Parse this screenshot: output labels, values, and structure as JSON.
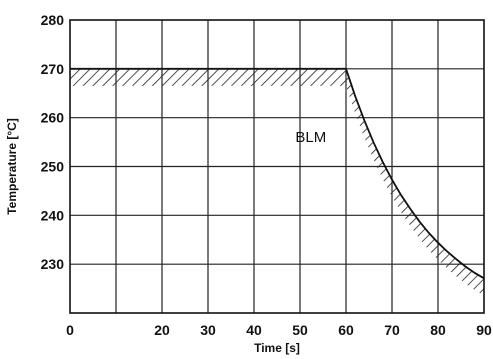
{
  "chart_data": {
    "type": "line",
    "title": "",
    "xlabel": "Time [s]",
    "ylabel": "Temperature [°C]",
    "xlim": [
      0,
      90
    ],
    "ylim": [
      220,
      280
    ],
    "x_ticks": [
      0,
      20,
      30,
      40,
      50,
      60,
      70,
      80,
      90
    ],
    "x_tick_labels": [
      "0",
      "20",
      "30",
      "40",
      "50",
      "60",
      "70",
      "80",
      "90"
    ],
    "y_ticks": [
      230,
      240,
      250,
      260,
      270,
      280
    ],
    "y_tick_labels": [
      "230",
      "240",
      "250",
      "260",
      "270",
      "280"
    ],
    "grid": true,
    "legend": "none",
    "series": [
      {
        "x": [
          0,
          60,
          62,
          64,
          66,
          68,
          70,
          72,
          74,
          76,
          78,
          80,
          82,
          84,
          86,
          88,
          90
        ],
        "y": [
          270,
          270,
          264.4,
          259.4,
          254.9,
          250.9,
          247.3,
          244.1,
          241.3,
          238.7,
          236.4,
          234.4,
          232.6,
          231.0,
          229.5,
          228.2,
          227.1
        ],
        "hatch": "below"
      }
    ],
    "annotations": [
      {
        "text": "BLM",
        "x": 49,
        "y": 255
      }
    ],
    "colors": {
      "line": "#111111",
      "grid": "#222222",
      "hatch": "#222222"
    }
  }
}
